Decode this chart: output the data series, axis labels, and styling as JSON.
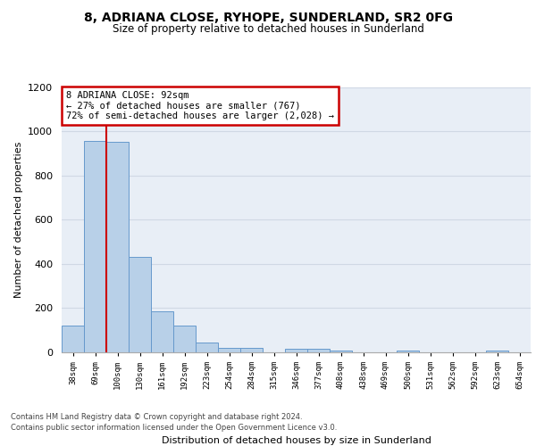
{
  "title": "8, ADRIANA CLOSE, RYHOPE, SUNDERLAND, SR2 0FG",
  "subtitle": "Size of property relative to detached houses in Sunderland",
  "xlabel": "Distribution of detached houses by size in Sunderland",
  "ylabel": "Number of detached properties",
  "categories": [
    "38sqm",
    "69sqm",
    "100sqm",
    "130sqm",
    "161sqm",
    "192sqm",
    "223sqm",
    "254sqm",
    "284sqm",
    "315sqm",
    "346sqm",
    "377sqm",
    "408sqm",
    "438sqm",
    "469sqm",
    "500sqm",
    "531sqm",
    "562sqm",
    "592sqm",
    "623sqm",
    "654sqm"
  ],
  "values": [
    120,
    955,
    950,
    430,
    185,
    120,
    45,
    20,
    20,
    0,
    15,
    15,
    10,
    0,
    0,
    10,
    0,
    0,
    0,
    10,
    0
  ],
  "bar_color": "#b8d0e8",
  "bar_edge_color": "#6699cc",
  "grid_color": "#d0d8e4",
  "background_color": "#e8eef6",
  "red_line_x": 1.5,
  "annotation_text": "8 ADRIANA CLOSE: 92sqm\n← 27% of detached houses are smaller (767)\n72% of semi-detached houses are larger (2,028) →",
  "annotation_box_color": "#ffffff",
  "annotation_edge_color": "#cc0000",
  "ylim": [
    0,
    1200
  ],
  "yticks": [
    0,
    200,
    400,
    600,
    800,
    1000,
    1200
  ],
  "footer_line1": "Contains HM Land Registry data © Crown copyright and database right 2024.",
  "footer_line2": "Contains public sector information licensed under the Open Government Licence v3.0."
}
